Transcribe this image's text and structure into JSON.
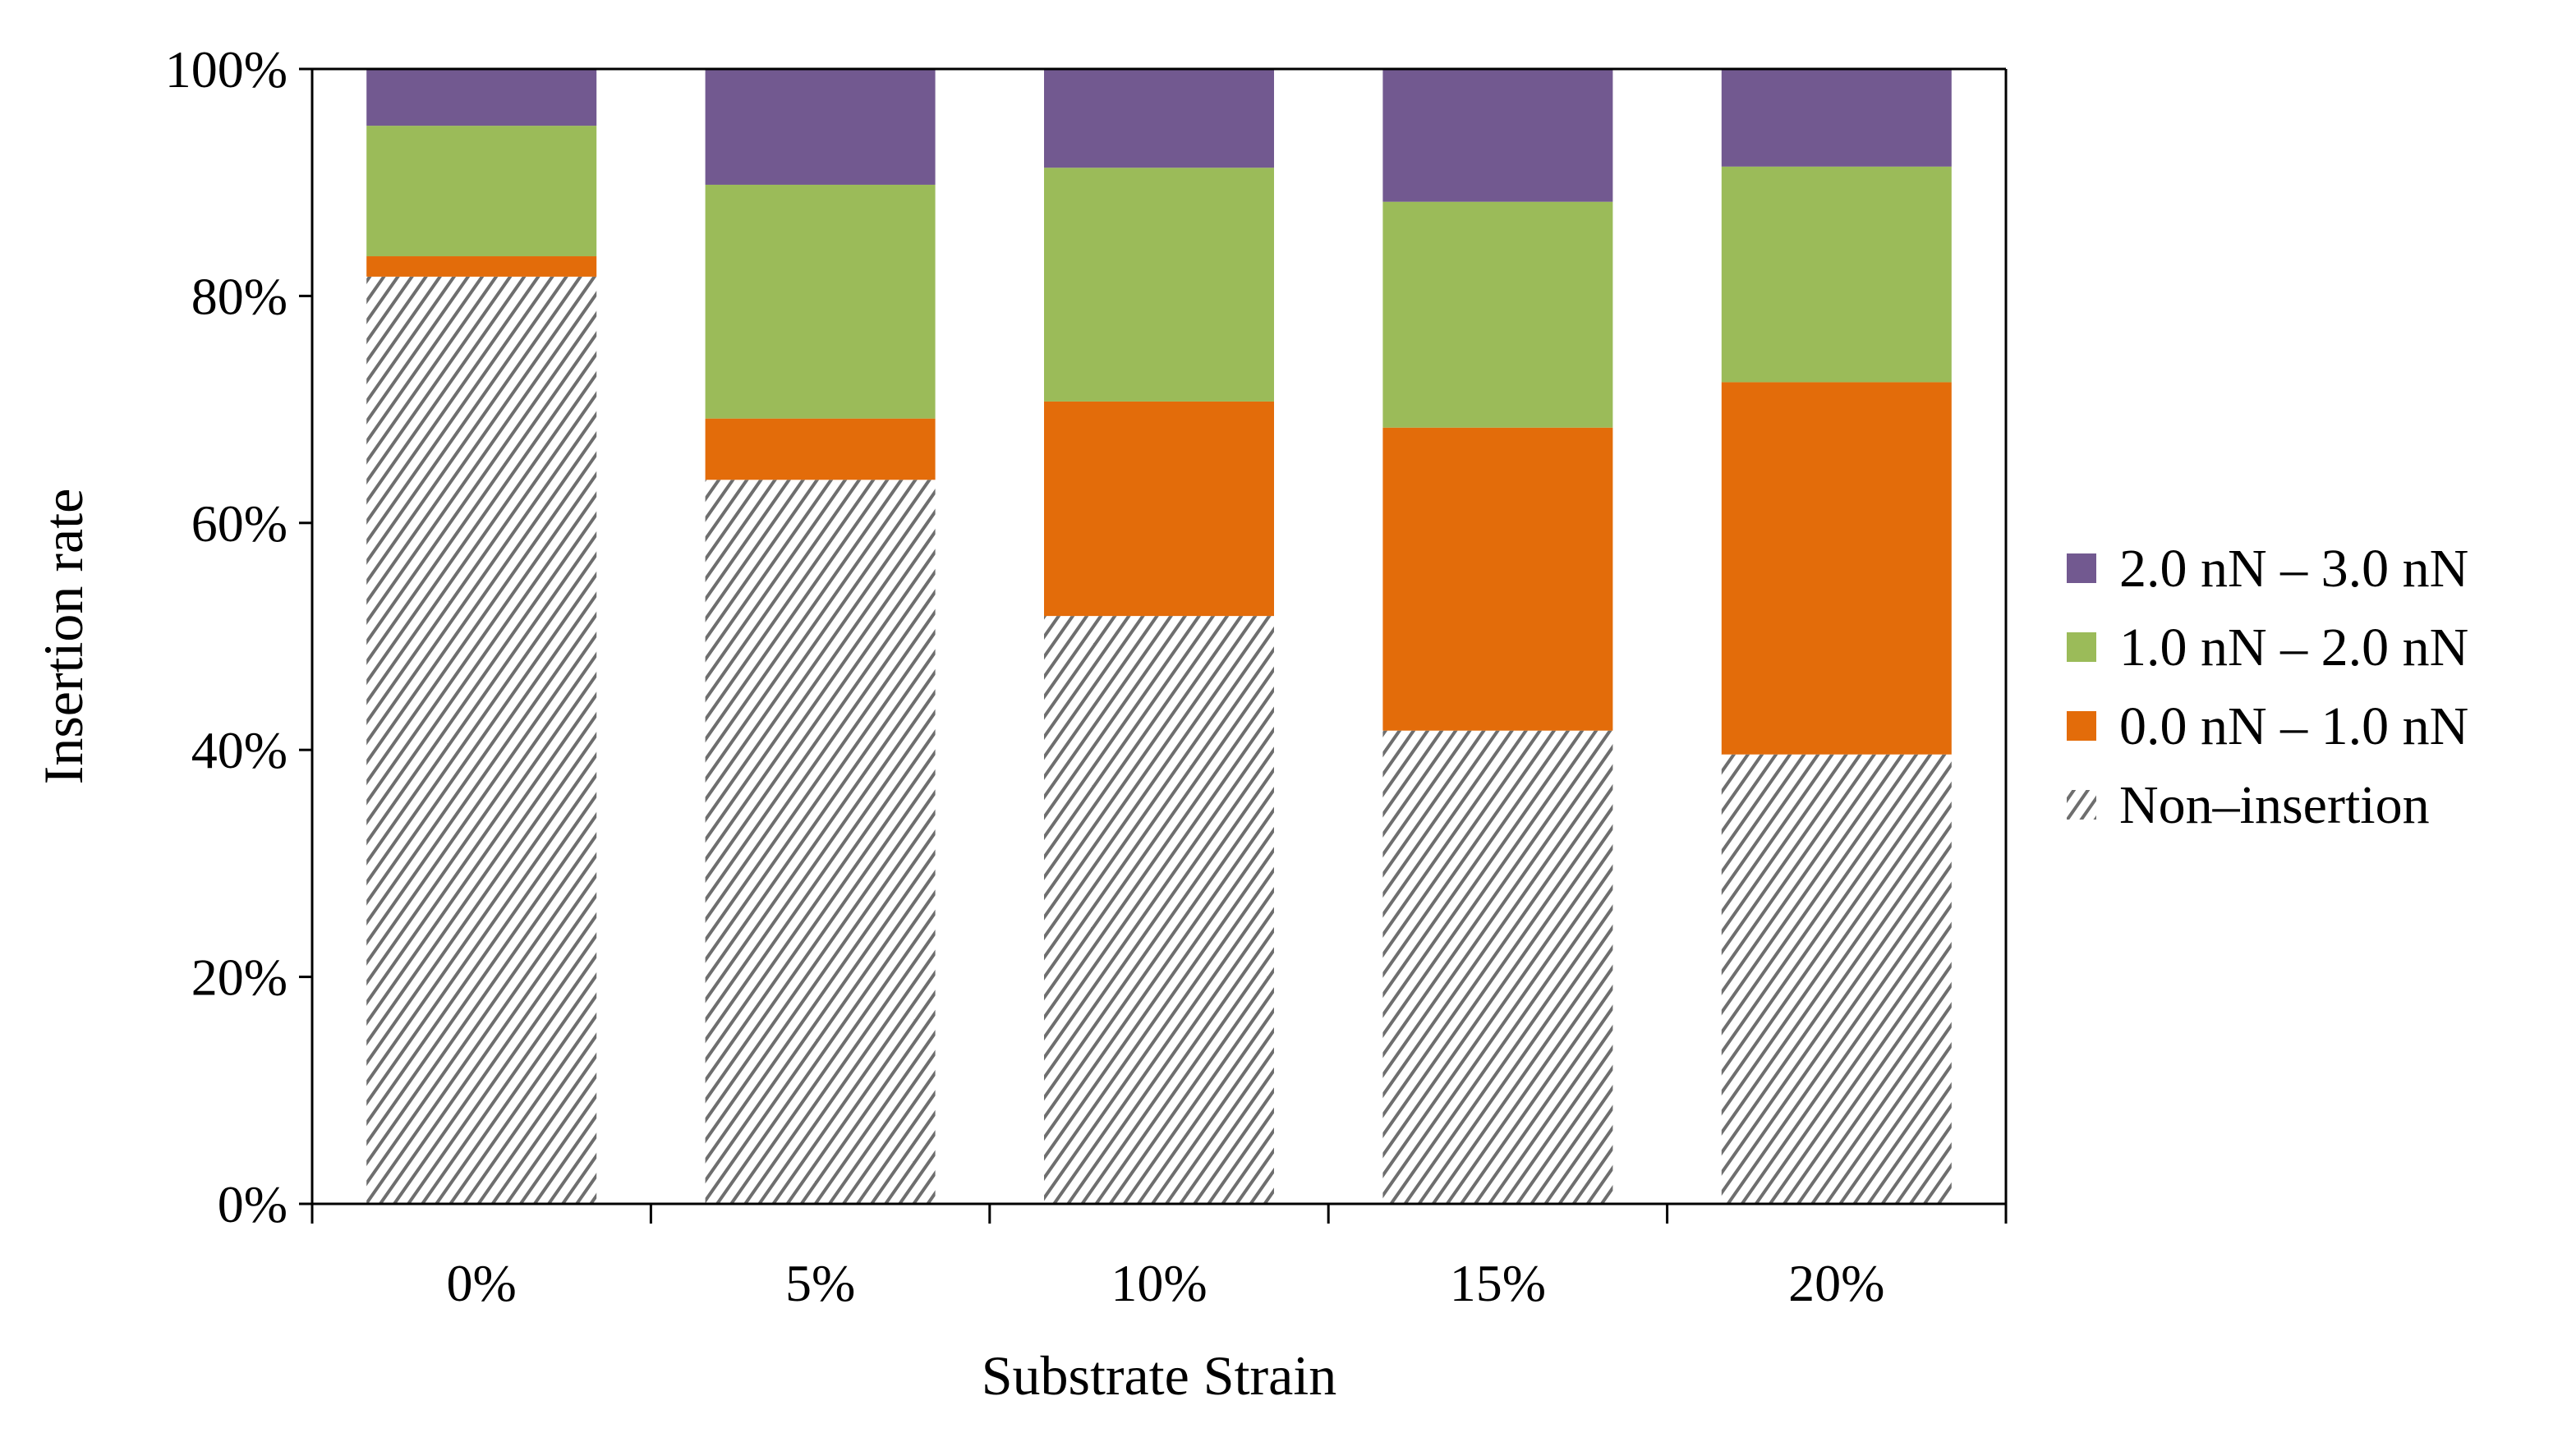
{
  "chart_data": {
    "type": "bar",
    "stacked": true,
    "title": "",
    "xlabel": "Substrate Strain",
    "ylabel": "Insertion rate",
    "categories": [
      "0%",
      "5%",
      "10%",
      "15%",
      "20%"
    ],
    "ylim": [
      0,
      100
    ],
    "yticks": [
      "0%",
      "20%",
      "40%",
      "60%",
      "80%",
      "100%"
    ],
    "grid": false,
    "legend_position": "right",
    "series": [
      {
        "name": "Non–insertion",
        "color": "#7f7f7f",
        "pattern": "diagonal-hatch",
        "values": [
          81.7,
          63.8,
          51.8,
          41.7,
          39.6
        ]
      },
      {
        "name": "0.0 nN – 1.0 nN",
        "color": "#e36c0a",
        "values": [
          1.8,
          5.4,
          18.9,
          26.7,
          32.8
        ]
      },
      {
        "name": "1.0 nN – 2.0 nN",
        "color": "#9bbb59",
        "values": [
          11.5,
          20.6,
          20.6,
          19.9,
          19.0
        ]
      },
      {
        "name": "2.0 nN – 3.0 nN",
        "color": "#725990",
        "values": [
          5.0,
          10.2,
          8.7,
          11.7,
          8.6
        ]
      }
    ],
    "legend_order": [
      "2.0 nN – 3.0 nN",
      "1.0 nN – 2.0 nN",
      "0.0 nN – 1.0 nN",
      "Non–insertion"
    ]
  }
}
